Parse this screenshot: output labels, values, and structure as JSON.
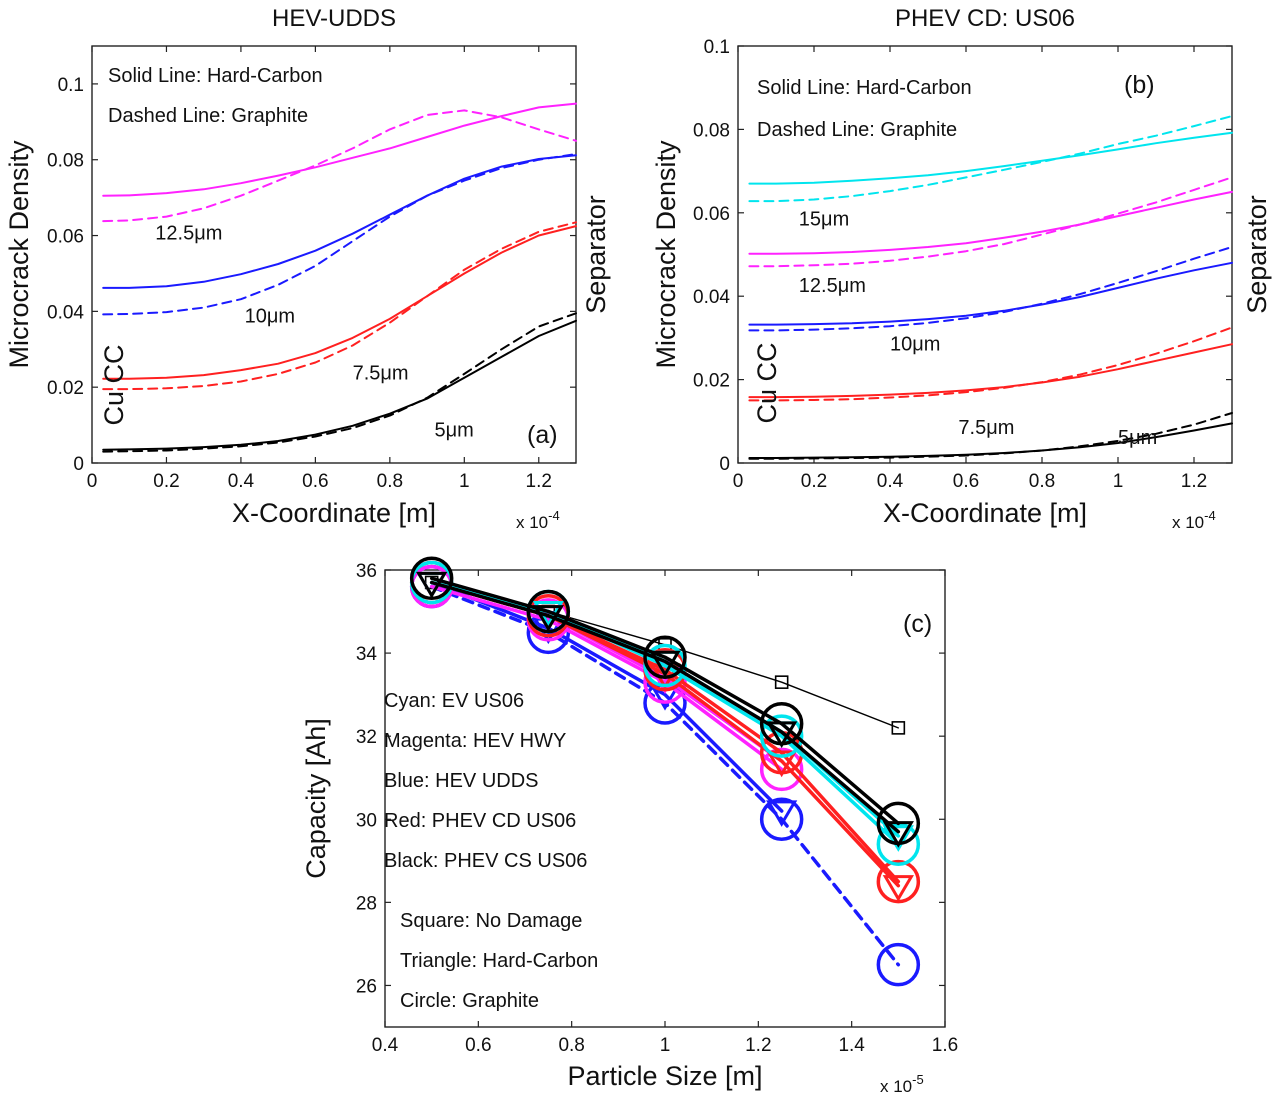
{
  "chart_data": [
    {
      "id": "a",
      "type": "line",
      "title": "HEV-UDDS",
      "panel_label": "(a)",
      "xlabel": "X-Coordinate [m]",
      "ylabel": "Microcrack Density",
      "x_exponent": "x 10",
      "x_exponent_power": "-4",
      "xlim": [
        0,
        1.3
      ],
      "ylim": [
        0,
        0.11
      ],
      "xticks": [
        0,
        0.2,
        0.4,
        0.6,
        0.8,
        1,
        1.2
      ],
      "xtick_labels": [
        "0",
        "0.2",
        "0.4",
        "0.6",
        "0.8",
        "1",
        "1.2"
      ],
      "yticks": [
        0,
        0.02,
        0.04,
        0.06,
        0.08,
        0.1
      ],
      "ytick_labels": [
        "0",
        "0.02",
        "0.04",
        "0.06",
        "0.08",
        "0.1"
      ],
      "annotations": {
        "solid_note": "Solid Line: Hard-Carbon",
        "dashed_note": "Dashed Line: Graphite",
        "left_label": "Cu CC",
        "right_label": "Separator"
      },
      "size_labels": [
        {
          "text": "12.5μm",
          "x": 0.17,
          "y": 0.059
        },
        {
          "text": "10μm",
          "x": 0.41,
          "y": 0.037
        },
        {
          "text": "7.5μm",
          "x": 0.7,
          "y": 0.022
        },
        {
          "text": "5μm",
          "x": 0.92,
          "y": 0.007
        }
      ],
      "x": [
        0.03,
        0.1,
        0.2,
        0.3,
        0.4,
        0.5,
        0.6,
        0.7,
        0.8,
        0.9,
        1.0,
        1.1,
        1.2,
        1.3
      ],
      "series": [
        {
          "name": "12.5μm Hard-Carbon",
          "color": "#ff22ff",
          "dash": false,
          "values": [
            0.0705,
            0.0706,
            0.0712,
            0.0722,
            0.0738,
            0.0758,
            0.078,
            0.0805,
            0.083,
            0.086,
            0.089,
            0.0915,
            0.0938,
            0.0948
          ]
        },
        {
          "name": "12.5μm Graphite",
          "color": "#ff22ff",
          "dash": true,
          "values": [
            0.0638,
            0.064,
            0.065,
            0.0672,
            0.0705,
            0.0745,
            0.0785,
            0.083,
            0.088,
            0.0918,
            0.093,
            0.0912,
            0.088,
            0.085
          ]
        },
        {
          "name": "10μm Hard-Carbon",
          "color": "#1a1aff",
          "dash": false,
          "values": [
            0.0462,
            0.0462,
            0.0466,
            0.0478,
            0.0498,
            0.0525,
            0.056,
            0.0605,
            0.0655,
            0.0705,
            0.075,
            0.0782,
            0.0802,
            0.0812
          ]
        },
        {
          "name": "10μm Graphite",
          "color": "#1a1aff",
          "dash": true,
          "values": [
            0.0392,
            0.0393,
            0.0398,
            0.041,
            0.0432,
            0.047,
            0.052,
            0.0585,
            0.065,
            0.0705,
            0.0745,
            0.0778,
            0.08,
            0.0815
          ]
        },
        {
          "name": "7.5μm Hard-Carbon",
          "color": "#ff2020",
          "dash": false,
          "values": [
            0.0222,
            0.0222,
            0.0225,
            0.0232,
            0.0245,
            0.0262,
            0.029,
            0.033,
            0.038,
            0.044,
            0.05,
            0.0555,
            0.06,
            0.0625
          ]
        },
        {
          "name": "7.5μm Graphite",
          "color": "#ff2020",
          "dash": true,
          "values": [
            0.0195,
            0.0195,
            0.0197,
            0.0203,
            0.0215,
            0.0235,
            0.0265,
            0.031,
            0.037,
            0.044,
            0.051,
            0.0565,
            0.061,
            0.0635
          ]
        },
        {
          "name": "5μm Hard-Carbon",
          "color": "#000000",
          "dash": false,
          "values": [
            0.0035,
            0.0036,
            0.0038,
            0.0042,
            0.0048,
            0.0058,
            0.0075,
            0.0098,
            0.013,
            0.017,
            0.0225,
            0.028,
            0.0335,
            0.0375
          ]
        },
        {
          "name": "5μm Graphite",
          "color": "#000000",
          "dash": true,
          "values": [
            0.003,
            0.0031,
            0.0033,
            0.0038,
            0.0044,
            0.0054,
            0.007,
            0.0092,
            0.0125,
            0.0172,
            0.0235,
            0.03,
            0.036,
            0.0395
          ]
        }
      ]
    },
    {
      "id": "b",
      "type": "line",
      "title": "PHEV CD: US06",
      "panel_label": "(b)",
      "xlabel": "X-Coordinate [m]",
      "ylabel": "Microcrack Density",
      "x_exponent": "x 10",
      "x_exponent_power": "-4",
      "xlim": [
        0,
        1.3
      ],
      "ylim": [
        0,
        0.1
      ],
      "xticks": [
        0,
        0.2,
        0.4,
        0.6,
        0.8,
        1,
        1.2
      ],
      "xtick_labels": [
        "0",
        "0.2",
        "0.4",
        "0.6",
        "0.8",
        "1",
        "1.2"
      ],
      "yticks": [
        0,
        0.02,
        0.04,
        0.06,
        0.08,
        0.1
      ],
      "ytick_labels": [
        "0",
        "0.02",
        "0.04",
        "0.06",
        "0.08",
        "0.1"
      ],
      "annotations": {
        "solid_note": "Solid Line: Hard-Carbon",
        "dashed_note": "Dashed Line: Graphite",
        "left_label": "Cu CC",
        "right_label": "Separator"
      },
      "size_labels": [
        {
          "text": "15μm",
          "x": 0.16,
          "y": 0.057
        },
        {
          "text": "12.5μm",
          "x": 0.16,
          "y": 0.041
        },
        {
          "text": "10μm",
          "x": 0.4,
          "y": 0.027
        },
        {
          "text": "7.5μm",
          "x": 0.58,
          "y": 0.007
        },
        {
          "text": "5μm",
          "x": 1.0,
          "y": 0.0045
        }
      ],
      "x": [
        0.03,
        0.1,
        0.2,
        0.3,
        0.4,
        0.5,
        0.6,
        0.7,
        0.8,
        0.9,
        1.0,
        1.1,
        1.2,
        1.3
      ],
      "series": [
        {
          "name": "15μm Hard-Carbon",
          "color": "#00e5ee",
          "dash": false,
          "values": [
            0.067,
            0.067,
            0.0672,
            0.0677,
            0.0683,
            0.069,
            0.07,
            0.0712,
            0.0725,
            0.0738,
            0.0752,
            0.0767,
            0.078,
            0.0792
          ]
        },
        {
          "name": "15μm Graphite",
          "color": "#00e5ee",
          "dash": true,
          "values": [
            0.0628,
            0.0628,
            0.0632,
            0.064,
            0.0652,
            0.0667,
            0.0685,
            0.0703,
            0.0722,
            0.0742,
            0.0765,
            0.0785,
            0.0808,
            0.0832
          ]
        },
        {
          "name": "12.5μm Hard-Carbon",
          "color": "#ff22ff",
          "dash": false,
          "values": [
            0.0502,
            0.0502,
            0.0503,
            0.0506,
            0.0511,
            0.0518,
            0.0527,
            0.054,
            0.0555,
            0.0572,
            0.0592,
            0.0612,
            0.0632,
            0.065
          ]
        },
        {
          "name": "12.5μm Graphite",
          "color": "#ff22ff",
          "dash": true,
          "values": [
            0.0472,
            0.0472,
            0.0474,
            0.0478,
            0.0485,
            0.0495,
            0.0508,
            0.0525,
            0.0548,
            0.0572,
            0.0598,
            0.0625,
            0.0655,
            0.0685
          ]
        },
        {
          "name": "10μm Hard-Carbon",
          "color": "#1a1aff",
          "dash": false,
          "values": [
            0.0332,
            0.0332,
            0.0333,
            0.0335,
            0.0339,
            0.0345,
            0.0353,
            0.0365,
            0.038,
            0.0398,
            0.042,
            0.0442,
            0.0462,
            0.048
          ]
        },
        {
          "name": "10μm Graphite",
          "color": "#1a1aff",
          "dash": true,
          "values": [
            0.0318,
            0.0318,
            0.032,
            0.0323,
            0.0328,
            0.0336,
            0.0347,
            0.0362,
            0.0382,
            0.0405,
            0.0432,
            0.046,
            0.049,
            0.0518
          ]
        },
        {
          "name": "7.5μm Hard-Carbon",
          "color": "#ff2020",
          "dash": false,
          "values": [
            0.0158,
            0.0158,
            0.0159,
            0.0161,
            0.0164,
            0.0168,
            0.0174,
            0.0182,
            0.0193,
            0.0207,
            0.0225,
            0.0245,
            0.0265,
            0.0285
          ]
        },
        {
          "name": "7.5μm Graphite",
          "color": "#ff2020",
          "dash": true,
          "values": [
            0.015,
            0.015,
            0.0151,
            0.0153,
            0.0157,
            0.0162,
            0.017,
            0.018,
            0.0194,
            0.0212,
            0.0235,
            0.0262,
            0.0292,
            0.0325
          ]
        },
        {
          "name": "5μm Hard-Carbon",
          "color": "#000000",
          "dash": false,
          "values": [
            0.0012,
            0.0012,
            0.0013,
            0.0014,
            0.0015,
            0.0017,
            0.002,
            0.0024,
            0.003,
            0.0038,
            0.0048,
            0.0062,
            0.0078,
            0.0095
          ]
        },
        {
          "name": "5μm Graphite",
          "color": "#000000",
          "dash": true,
          "values": [
            0.001,
            0.001,
            0.0011,
            0.0012,
            0.0013,
            0.0015,
            0.0018,
            0.0023,
            0.003,
            0.004,
            0.0053,
            0.007,
            0.0092,
            0.012
          ]
        }
      ]
    },
    {
      "id": "c",
      "type": "line",
      "title": "",
      "panel_label": "(c)",
      "xlabel": "Particle Size [m]",
      "ylabel": "Capacity [Ah]",
      "x_exponent": "x 10",
      "x_exponent_power": "-5",
      "xlim": [
        0.4,
        1.6
      ],
      "ylim": [
        25,
        36
      ],
      "xticks": [
        0.4,
        0.6,
        0.8,
        1,
        1.2,
        1.4,
        1.6
      ],
      "xtick_labels": [
        "0.4",
        "0.6",
        "0.8",
        "1",
        "1.2",
        "1.4",
        "1.6"
      ],
      "yticks": [
        26,
        28,
        30,
        32,
        34,
        36
      ],
      "ytick_labels": [
        "26",
        "28",
        "30",
        "32",
        "34",
        "36"
      ],
      "legend_colors": [
        "Cyan: EV US06",
        "Magenta: HEV HWY",
        "Blue: HEV UDDS",
        "Red: PHEV CD US06",
        "Black: PHEV CS US06"
      ],
      "legend_markers": [
        "Square: No Damage",
        "Triangle: Hard-Carbon",
        "Circle: Graphite"
      ],
      "x": [
        0.5,
        0.75,
        1.0,
        1.25,
        1.5
      ],
      "series": [
        {
          "name": "No Damage",
          "color": "#000000",
          "dash": false,
          "marker": "square",
          "width": 1.4,
          "values": [
            35.7,
            35.0,
            34.2,
            33.3,
            32.2
          ]
        },
        {
          "name": "HEV UDDS Graphite",
          "color": "#1a1aff",
          "dash": true,
          "marker": "circle",
          "width": 3.5,
          "values": [
            35.6,
            34.5,
            32.8,
            30.0,
            26.5
          ]
        },
        {
          "name": "HEV UDDS Hard-Carbon",
          "color": "#1a1aff",
          "dash": false,
          "marker": "triangle",
          "width": 3.5,
          "values": [
            35.7,
            34.6,
            33.0,
            30.2,
            null
          ]
        },
        {
          "name": "HEV HWY Graphite",
          "color": "#ff22ff",
          "dash": false,
          "marker": "circle",
          "width": 3.5,
          "values": [
            35.6,
            34.8,
            33.3,
            31.2,
            null
          ]
        },
        {
          "name": "HEV HWY Hard-Carbon",
          "color": "#ff22ff",
          "dash": false,
          "marker": "triangle",
          "width": 3.5,
          "values": [
            35.7,
            34.9,
            33.4,
            31.4,
            null
          ]
        },
        {
          "name": "PHEV CD US06 Graphite",
          "color": "#ff2020",
          "dash": false,
          "marker": "circle",
          "width": 3.5,
          "values": [
            35.7,
            34.9,
            33.6,
            31.6,
            28.5
          ]
        },
        {
          "name": "PHEV CD US06 Hard-Carbon",
          "color": "#ff2020",
          "dash": false,
          "marker": "triangle",
          "width": 3.5,
          "values": [
            35.7,
            34.9,
            33.5,
            31.4,
            28.4
          ]
        },
        {
          "name": "EV US06 Graphite",
          "color": "#00e5ee",
          "dash": false,
          "marker": "circle",
          "width": 3.5,
          "values": [
            35.7,
            35.0,
            33.7,
            32.0,
            29.4
          ]
        },
        {
          "name": "EV US06 Hard-Carbon",
          "color": "#00e5ee",
          "dash": false,
          "marker": "triangle",
          "width": 3.5,
          "values": [
            35.7,
            35.0,
            33.8,
            32.1,
            29.6
          ]
        },
        {
          "name": "PHEV CS US06 Graphite",
          "color": "#000000",
          "dash": false,
          "marker": "circle",
          "width": 3.5,
          "values": [
            35.8,
            35.0,
            33.9,
            32.3,
            29.9
          ]
        },
        {
          "name": "PHEV CS US06 Hard-Carbon",
          "color": "#000000",
          "dash": false,
          "marker": "triangle",
          "width": 3.5,
          "values": [
            35.7,
            34.9,
            33.8,
            32.1,
            29.7
          ]
        }
      ]
    }
  ]
}
